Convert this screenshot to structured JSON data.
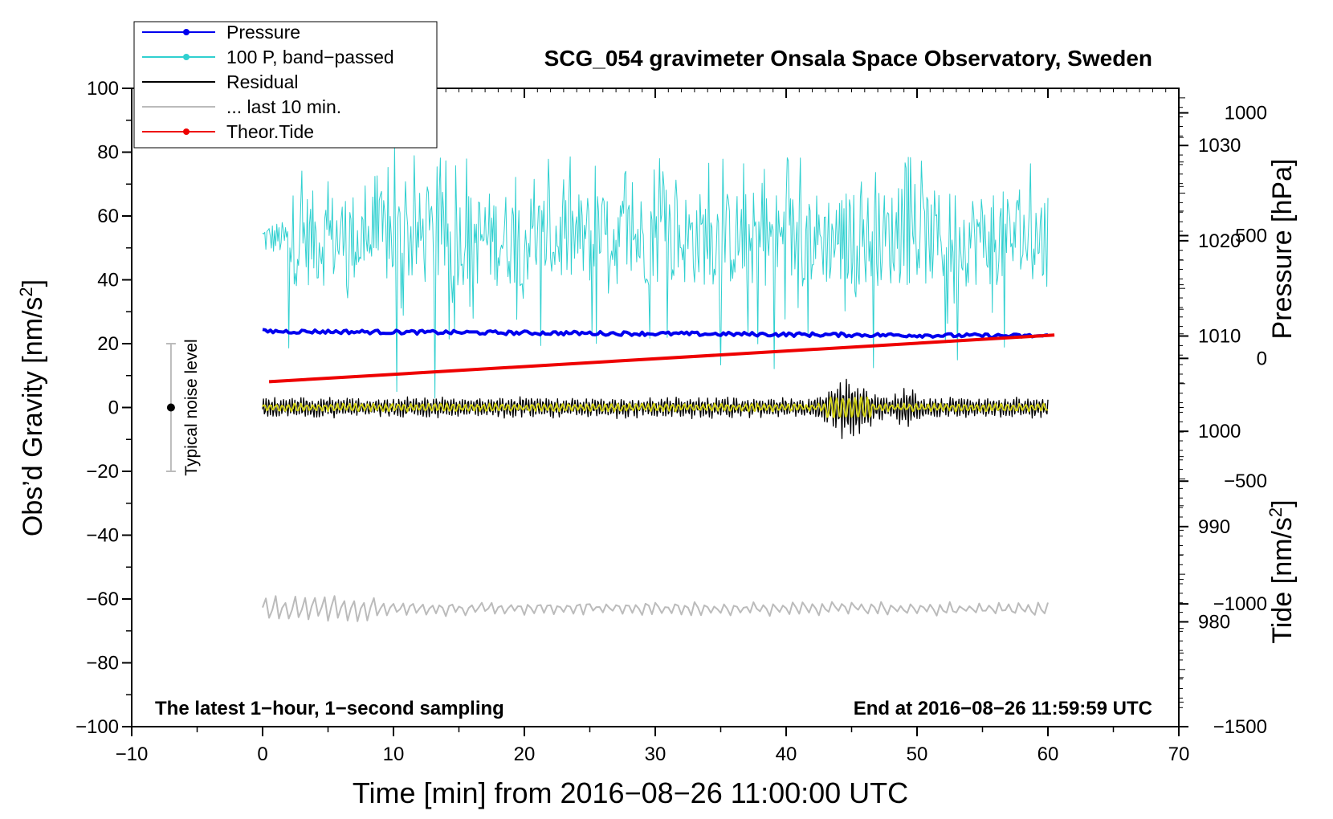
{
  "chart_data": {
    "type": "line",
    "title": "SCG_054 gravimeter Onsala Space Observatory, Sweden",
    "xlabel": "Time [min] from 2016−08−26 11:00:00 UTC",
    "xlim": [
      -10,
      70
    ],
    "xticks": [
      "−10",
      "0",
      "10",
      "20",
      "30",
      "40",
      "50",
      "60",
      "70"
    ],
    "left_axis": {
      "label_main": "Obs’d Gravity [nm/s",
      "label_sup": "2",
      "label_end": "]",
      "ylim": [
        -100,
        100
      ],
      "ticks": [
        "−100",
        "−80",
        "−60",
        "−40",
        "−20",
        "0",
        "20",
        "40",
        "60",
        "80",
        "100"
      ]
    },
    "right_pressure_axis": {
      "label": "Pressure [hPa]",
      "ylim": [
        969,
        1036
      ],
      "ticks": [
        "980",
        "990",
        "1000",
        "1010",
        "1020",
        "1030"
      ]
    },
    "right_tide_axis": {
      "label_main": "Tide [nm/s",
      "label_sup": "2",
      "label_end": "]",
      "ylim": [
        -1500,
        1100
      ],
      "ticks": [
        "−1500",
        "−1000",
        "−500",
        "0",
        "500",
        "1000"
      ]
    },
    "legend": {
      "placement": "top-left",
      "entries": [
        {
          "label": "Pressure",
          "color": "#0000ee",
          "marker": true
        },
        {
          "label": "100 P, band−passed",
          "color": "#30d0d0",
          "marker": true
        },
        {
          "label": "Residual",
          "color": "#000000",
          "marker": false
        },
        {
          "label": "... last 10 min.",
          "color": "#bbbbbb",
          "marker": false
        },
        {
          "label": "Theor.Tide",
          "color": "#ee0000",
          "marker": true
        }
      ]
    },
    "noise_bar": {
      "label": "Typical noise level",
      "x": -7,
      "y": 0,
      "low": -20,
      "high": 20
    },
    "annotations": {
      "bottom_left": "The latest 1−hour, 1−second sampling",
      "bottom_right": "End at 2016−08−26 11:59:59 UTC"
    },
    "series": [
      {
        "name": "Pressure",
        "axis": "pressure_hPa",
        "color": "#0000ee",
        "x_range": [
          0,
          60
        ],
        "start": 1010.5,
        "end": 1010.0,
        "noise": 0.4
      },
      {
        "name": "100 P, band−passed",
        "axis": "gravity",
        "color": "#30d0d0",
        "x_range": [
          0,
          60
        ],
        "baseline": 53,
        "typical_min": 30,
        "typical_max": 70,
        "min": 5,
        "max": 82
      },
      {
        "name": "Residual",
        "axis": "gravity",
        "color": "#000000",
        "x_range": [
          0,
          60
        ],
        "baseline": 0,
        "amplitude": 3,
        "event": {
          "x_start": 42,
          "x_end": 51,
          "peak": 10,
          "min": -11
        }
      },
      {
        "name": "Residual (smoothed)",
        "axis": "gravity",
        "color": "#d4d418",
        "x_range": [
          0,
          60
        ],
        "baseline": 0,
        "amplitude": 1.5
      },
      {
        "name": "... last 10 min.",
        "axis": "gravity",
        "color": "#bbbbbb",
        "x_range": [
          0,
          60
        ],
        "baseline": -63,
        "min": -67,
        "max": -56
      },
      {
        "name": "Theor.Tide",
        "axis": "tide",
        "color": "#ee0000",
        "x": [
          0.5,
          60.5
        ],
        "values": [
          -95,
          95
        ]
      }
    ]
  }
}
